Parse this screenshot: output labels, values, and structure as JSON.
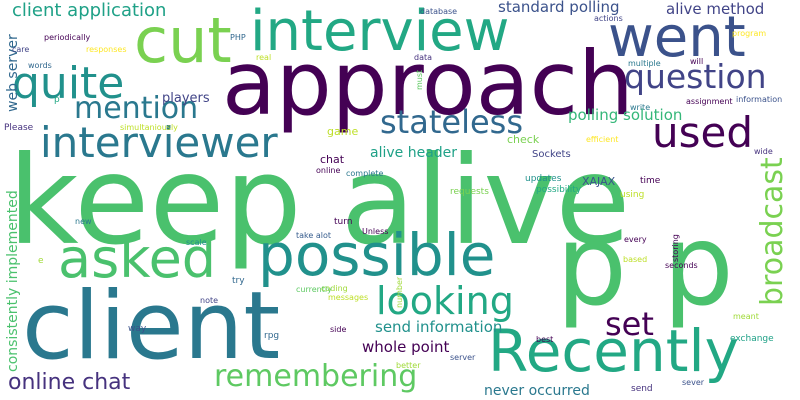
{
  "colors": {
    "background": "#ffffff",
    "palette": [
      "#440154",
      "#46327e",
      "#365c8d",
      "#277f8e",
      "#1fa187",
      "#4ac16d",
      "#a0da39",
      "#fde725"
    ]
  },
  "words": [
    {
      "text": "keep alive",
      "color": "#4ac16d"
    },
    {
      "text": "approach",
      "color": "#440154"
    },
    {
      "text": "p p",
      "color": "#4ac16d"
    },
    {
      "text": "client",
      "color": "#2a788e"
    },
    {
      "text": "interview",
      "color": "#22a884"
    },
    {
      "text": "possible",
      "color": "#21918c"
    },
    {
      "text": "went",
      "color": "#3b528b"
    },
    {
      "text": "Recently",
      "color": "#22a884"
    },
    {
      "text": "cut",
      "color": "#7ad151"
    },
    {
      "text": "asked",
      "color": "#4ac16d"
    },
    {
      "text": "interviewer",
      "color": "#2a788e"
    },
    {
      "text": "used",
      "color": "#440154"
    },
    {
      "text": "quite",
      "color": "#21918c"
    },
    {
      "text": "question",
      "color": "#414487"
    },
    {
      "text": "broadcast",
      "color": "#7ad151"
    },
    {
      "text": "looking",
      "color": "#22a884"
    },
    {
      "text": "remembering",
      "color": "#5ec962"
    },
    {
      "text": "stateless",
      "color": "#31688e"
    },
    {
      "text": "mention",
      "color": "#2a788e"
    },
    {
      "text": "set",
      "color": "#440154"
    },
    {
      "text": "online chat",
      "color": "#46327e"
    },
    {
      "text": "client application",
      "color": "#1fa187"
    },
    {
      "text": "standard polling",
      "color": "#3b528b"
    },
    {
      "text": "alive method",
      "color": "#414487"
    },
    {
      "text": "polling solution",
      "color": "#35b779"
    },
    {
      "text": "alive header",
      "color": "#1fa187"
    },
    {
      "text": "send information",
      "color": "#21918c"
    },
    {
      "text": "whole point",
      "color": "#440154"
    },
    {
      "text": "never occurred",
      "color": "#2a788e"
    },
    {
      "text": "consistently implemented",
      "color": "#4ac16d"
    },
    {
      "text": "web server",
      "color": "#31688e"
    },
    {
      "text": "players",
      "color": "#414487"
    },
    {
      "text": "game",
      "color": "#bddf26"
    },
    {
      "text": "check",
      "color": "#7ad151"
    },
    {
      "text": "chat",
      "color": "#440154"
    },
    {
      "text": "XAJAX",
      "color": "#3b528b"
    },
    {
      "text": "Sockets",
      "color": "#414487"
    },
    {
      "text": "updates",
      "color": "#21918c"
    },
    {
      "text": "possibility",
      "color": "#22a884"
    },
    {
      "text": "requests",
      "color": "#7ad151"
    },
    {
      "text": "using",
      "color": "#bddf26"
    },
    {
      "text": "time",
      "color": "#440154"
    },
    {
      "text": "periodically",
      "color": "#440154"
    },
    {
      "text": "PHP",
      "color": "#31688e"
    },
    {
      "text": "database",
      "color": "#3b528b"
    },
    {
      "text": "actions",
      "color": "#414487"
    },
    {
      "text": "program",
      "color": "#fde725"
    },
    {
      "text": "multiple",
      "color": "#2a788e"
    },
    {
      "text": "will",
      "color": "#440154"
    },
    {
      "text": "care",
      "color": "#414487"
    },
    {
      "text": "responses",
      "color": "#fde725"
    },
    {
      "text": "real",
      "color": "#bddf26"
    },
    {
      "text": "data",
      "color": "#46327e"
    },
    {
      "text": "must",
      "color": "#5ec962"
    },
    {
      "text": "words",
      "color": "#31688e"
    },
    {
      "text": "p",
      "color": "#22a884"
    },
    {
      "text": "assignment",
      "color": "#440154"
    },
    {
      "text": "information",
      "color": "#3b528b"
    },
    {
      "text": "write",
      "color": "#2a788e"
    },
    {
      "text": "Please",
      "color": "#46327e"
    },
    {
      "text": "simultaniously",
      "color": "#bddf26"
    },
    {
      "text": "efficient",
      "color": "#fde725"
    },
    {
      "text": "wide",
      "color": "#46327e"
    },
    {
      "text": "online",
      "color": "#440154"
    },
    {
      "text": "complete",
      "color": "#2a788e"
    },
    {
      "text": "new",
      "color": "#2a788e"
    },
    {
      "text": "take alot",
      "color": "#365c8d"
    },
    {
      "text": "turn",
      "color": "#440154"
    },
    {
      "text": "Unless",
      "color": "#440154"
    },
    {
      "text": "every",
      "color": "#440154"
    },
    {
      "text": "storing",
      "color": "#440154"
    },
    {
      "text": "based",
      "color": "#bddf26"
    },
    {
      "text": "seconds",
      "color": "#440154"
    },
    {
      "text": "e",
      "color": "#a0da39"
    },
    {
      "text": "scale",
      "color": "#21918c"
    },
    {
      "text": "try",
      "color": "#31688e"
    },
    {
      "text": "coding",
      "color": "#a0da39"
    },
    {
      "text": "currently",
      "color": "#5ec962"
    },
    {
      "text": "note",
      "color": "#414487"
    },
    {
      "text": "messages",
      "color": "#bddf26"
    },
    {
      "text": "number",
      "color": "#a0da39"
    },
    {
      "text": "meant",
      "color": "#a0da39"
    },
    {
      "text": "way",
      "color": "#3b528b"
    },
    {
      "text": "rpg",
      "color": "#31688e"
    },
    {
      "text": "side",
      "color": "#440154"
    },
    {
      "text": "best",
      "color": "#440154"
    },
    {
      "text": "exchange",
      "color": "#1fa187"
    },
    {
      "text": "better",
      "color": "#a0da39"
    },
    {
      "text": "server",
      "color": "#3b528b"
    },
    {
      "text": "send",
      "color": "#46327e"
    },
    {
      "text": "sever",
      "color": "#3b528b"
    }
  ]
}
